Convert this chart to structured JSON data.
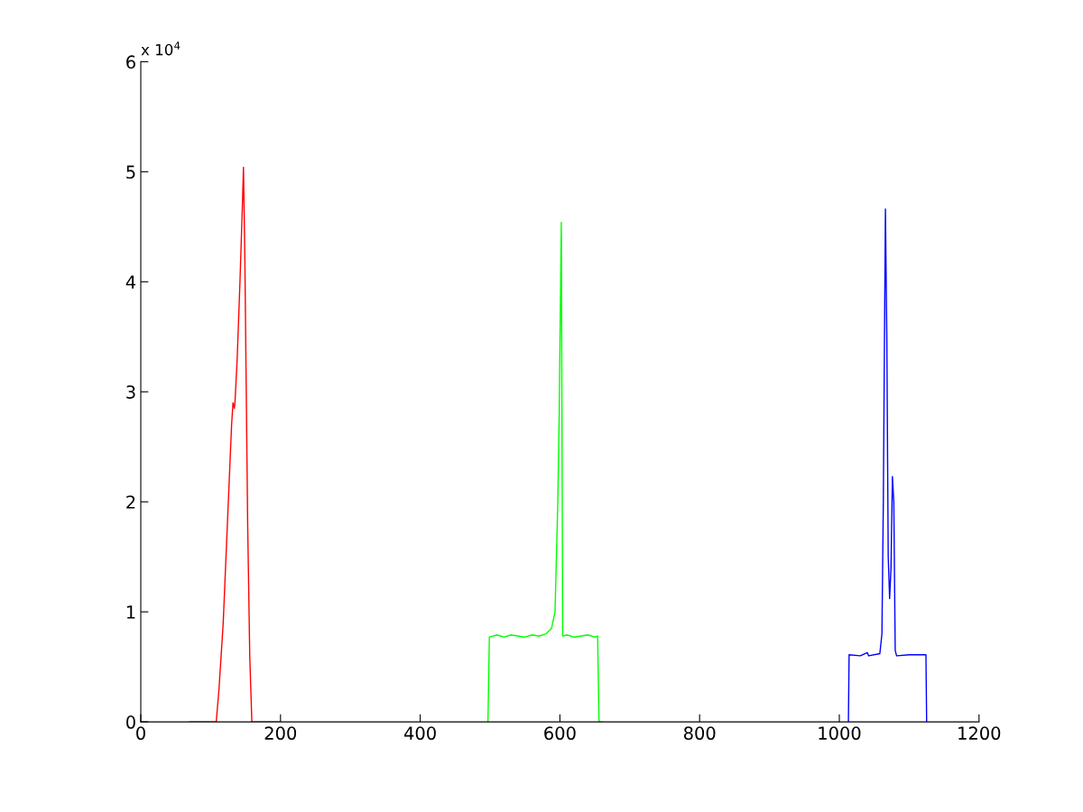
{
  "chart_data": {
    "type": "line",
    "xlim": [
      0,
      1200
    ],
    "xticks": [
      0,
      200,
      400,
      600,
      800,
      1000,
      1200
    ],
    "ylim": [
      0,
      6
    ],
    "yticks": [
      0,
      1,
      2,
      3,
      4,
      5,
      6
    ],
    "annotations": [
      "x 10$^{4}$"
    ],
    "grid": false,
    "legend": false,
    "series": [
      {
        "color": "#ff0000",
        "x": [
          70,
          108,
          112,
          118,
          124,
          130,
          132,
          134,
          135,
          138,
          142,
          145,
          147,
          149,
          151,
          153,
          156,
          159,
          199
        ],
        "values": [
          0,
          0,
          0.3,
          0.9,
          1.8,
          2.7,
          2.9,
          2.85,
          2.92,
          3.3,
          4.0,
          4.6,
          5.04,
          4.2,
          3.0,
          1.8,
          0.6,
          0,
          0
        ]
      },
      {
        "color": "#00ff00",
        "x": [
          497,
          499,
          510,
          520,
          530,
          540,
          550,
          560,
          570,
          580,
          588,
          593,
          597,
          599,
          600,
          602,
          604,
          610,
          620,
          630,
          640,
          650,
          654,
          656,
          660
        ],
        "values": [
          0,
          0.77,
          0.79,
          0.77,
          0.79,
          0.78,
          0.77,
          0.79,
          0.78,
          0.8,
          0.85,
          1.0,
          2.0,
          2.8,
          3.4,
          4.54,
          0.78,
          0.79,
          0.77,
          0.78,
          0.79,
          0.77,
          0.78,
          0,
          0
        ]
      },
      {
        "color": "#0000ff",
        "x": [
          1013,
          1014,
          1030,
          1040,
          1042,
          1058,
          1061,
          1063,
          1065,
          1066,
          1068,
          1070,
          1072,
          1074,
          1076,
          1078,
          1080,
          1082,
          1100,
          1124,
          1125
        ],
        "values": [
          0,
          0.61,
          0.6,
          0.63,
          0.6,
          0.62,
          0.8,
          2.0,
          3.8,
          4.66,
          3.5,
          1.5,
          1.12,
          1.4,
          2.23,
          2.0,
          0.65,
          0.6,
          0.61,
          0.61,
          0
        ]
      }
    ]
  }
}
